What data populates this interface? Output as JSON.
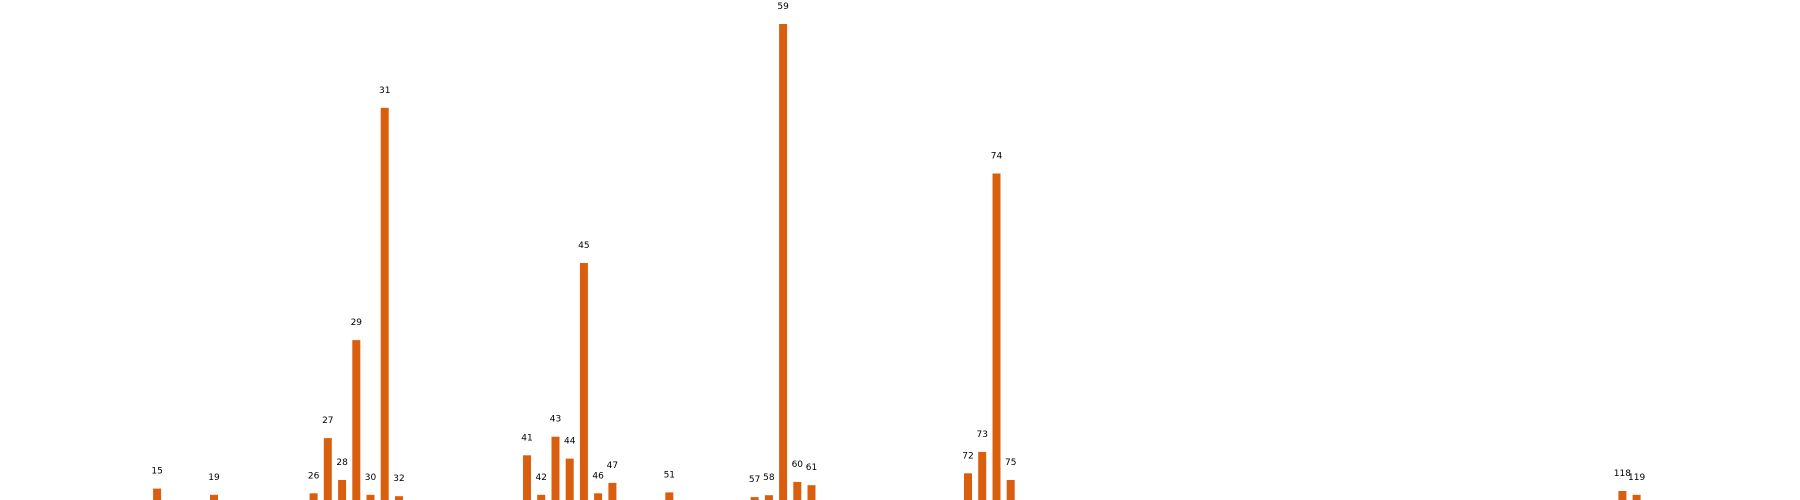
{
  "chart_data": {
    "type": "bar",
    "title": "",
    "xlabel": "",
    "ylabel": "",
    "color": "#d95f0e",
    "ylim": [
      0,
      100
    ],
    "x_range": [
      10,
      125
    ],
    "grid": false,
    "legend": "none",
    "bars": [
      {
        "label": "15",
        "value": 2.4
      },
      {
        "label": "19",
        "value": 1.1
      },
      {
        "label": "26",
        "value": 1.4
      },
      {
        "label": "27",
        "value": 13.0
      },
      {
        "label": "28",
        "value": 4.2
      },
      {
        "label": "29",
        "value": 33.6
      },
      {
        "label": "30",
        "value": 1.1
      },
      {
        "label": "31",
        "value": 82.4
      },
      {
        "label": "32",
        "value": 0.8
      },
      {
        "label": "41",
        "value": 9.4
      },
      {
        "label": "42",
        "value": 1.1
      },
      {
        "label": "43",
        "value": 13.3
      },
      {
        "label": "44",
        "value": 8.7
      },
      {
        "label": "45",
        "value": 49.8
      },
      {
        "label": "46",
        "value": 1.4
      },
      {
        "label": "47",
        "value": 3.6
      },
      {
        "label": "51",
        "value": 1.6
      },
      {
        "label": "57",
        "value": 0.6
      },
      {
        "label": "58",
        "value": 1.0
      },
      {
        "label": "59",
        "value": 100.0
      },
      {
        "label": "60",
        "value": 3.8
      },
      {
        "label": "61",
        "value": 3.1
      },
      {
        "label": "72",
        "value": 5.6
      },
      {
        "label": "73",
        "value": 10.1
      },
      {
        "label": "74",
        "value": 68.6
      },
      {
        "label": "75",
        "value": 4.2
      },
      {
        "label": "118",
        "value": 1.9
      },
      {
        "label": "119",
        "value": 1.1
      }
    ]
  }
}
